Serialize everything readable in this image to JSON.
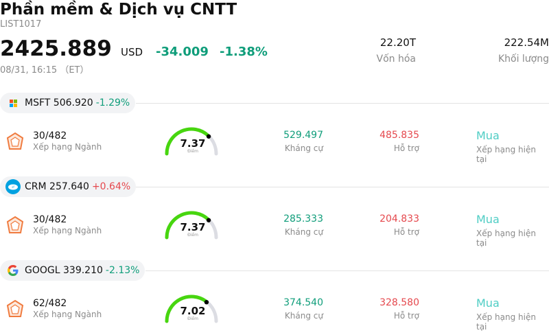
{
  "header": {
    "title": "Phần mềm & Dịch vụ CNTT",
    "code": "LIST1017",
    "price": "2425.889",
    "currency": "USD",
    "change": "-34.009",
    "change_pct": "-1.38%",
    "time": "08/31, 16:15 （ET）"
  },
  "stats": [
    {
      "value": "22.20T",
      "label": "Vốn hóa"
    },
    {
      "value": "222.54M",
      "label": "Khối lượng"
    }
  ],
  "stocks": [
    {
      "ticker": "MSFT",
      "price": "506.920",
      "change_pct": "-1.29%",
      "direction": "neg",
      "logo": "microsoft-logo",
      "rank": "30/482",
      "rank_label": "Xếp hạng Ngành",
      "score": "7.37",
      "score_value": 7.37,
      "score_label": "Điểm",
      "resistance": "529.497",
      "resistance_label": "Kháng cự",
      "support": "485.835",
      "support_label": "Hỗ trợ",
      "rating": "Mua",
      "rating_label": "Xếp hạng hiện tại"
    },
    {
      "ticker": "CRM",
      "price": "257.640",
      "change_pct": "+0.64%",
      "direction": "pos",
      "logo": "salesforce-logo",
      "rank": "30/482",
      "rank_label": "Xếp hạng Ngành",
      "score": "7.37",
      "score_value": 7.37,
      "score_label": "Điểm",
      "resistance": "285.333",
      "resistance_label": "Kháng cự",
      "support": "204.833",
      "support_label": "Hỗ trợ",
      "rating": "Mua",
      "rating_label": "Xếp hạng hiện tại"
    },
    {
      "ticker": "GOOGL",
      "price": "339.210",
      "change_pct": "-2.13%",
      "direction": "neg",
      "logo": "google-logo",
      "rank": "62/482",
      "rank_label": "Xếp hạng Ngành",
      "score": "7.02",
      "score_value": 7.02,
      "score_label": "Điểm",
      "resistance": "374.540",
      "resistance_label": "Kháng cự",
      "support": "328.580",
      "support_label": "Hỗ trợ",
      "rating": "Mua",
      "rating_label": "Xếp hạng hiện tại"
    }
  ],
  "colors": {
    "down": "#0f9d7a",
    "up": "#e5484d",
    "buy": "#4ecdc4",
    "gauge_fill": "#47d60f",
    "gauge_track": "#dcdde3",
    "rank_icon": "#f07b3f"
  }
}
